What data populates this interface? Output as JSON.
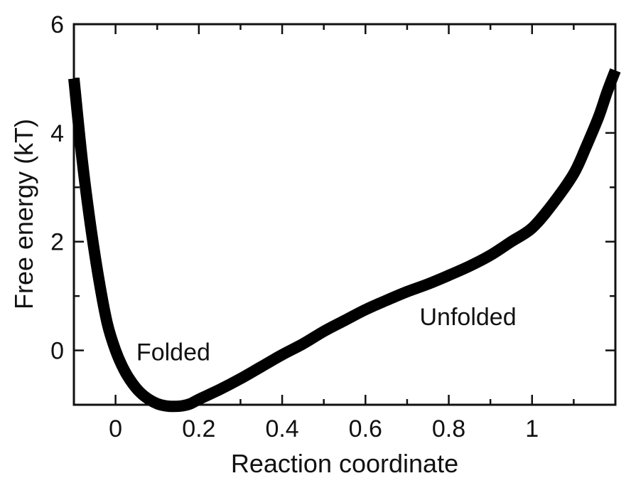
{
  "chart_data": {
    "type": "line",
    "xlabel": "Reaction coordinate",
    "ylabel": "Free energy (kT)",
    "xlim": [
      -0.1,
      1.2
    ],
    "ylim": [
      -1.0,
      6.0
    ],
    "x_ticks": [
      0,
      0.2,
      0.4,
      0.6,
      0.8,
      1
    ],
    "x_tick_labels": [
      "0",
      "0.2",
      "0.4",
      "0.6",
      "0.8",
      "1"
    ],
    "y_ticks": [
      0,
      2,
      4,
      6
    ],
    "y_tick_labels": [
      "0",
      "2",
      "4",
      "6"
    ],
    "grid": false,
    "annotations": [
      {
        "text": "Folded",
        "x": 0.05,
        "y": 0.0
      },
      {
        "text": "Unfolded",
        "x": 0.73,
        "y": 0.65
      }
    ],
    "series": [
      {
        "color": "#000000",
        "x": [
          -0.1,
          -0.08,
          -0.06,
          -0.04,
          -0.02,
          0.0,
          0.02,
          0.04,
          0.06,
          0.08,
          0.1,
          0.12,
          0.14,
          0.16,
          0.18,
          0.2,
          0.25,
          0.3,
          0.35,
          0.4,
          0.45,
          0.5,
          0.55,
          0.6,
          0.65,
          0.7,
          0.75,
          0.8,
          0.85,
          0.9,
          0.95,
          1.0,
          1.05,
          1.1,
          1.13,
          1.16,
          1.18,
          1.2
        ],
        "y": [
          5.0,
          3.5,
          2.3,
          1.3,
          0.5,
          0.0,
          -0.35,
          -0.6,
          -0.78,
          -0.9,
          -0.98,
          -1.02,
          -1.03,
          -1.02,
          -0.98,
          -0.9,
          -0.72,
          -0.52,
          -0.3,
          -0.08,
          0.12,
          0.35,
          0.55,
          0.75,
          0.92,
          1.08,
          1.22,
          1.38,
          1.55,
          1.75,
          2.0,
          2.25,
          2.7,
          3.25,
          3.75,
          4.3,
          4.75,
          5.15
        ]
      }
    ]
  }
}
